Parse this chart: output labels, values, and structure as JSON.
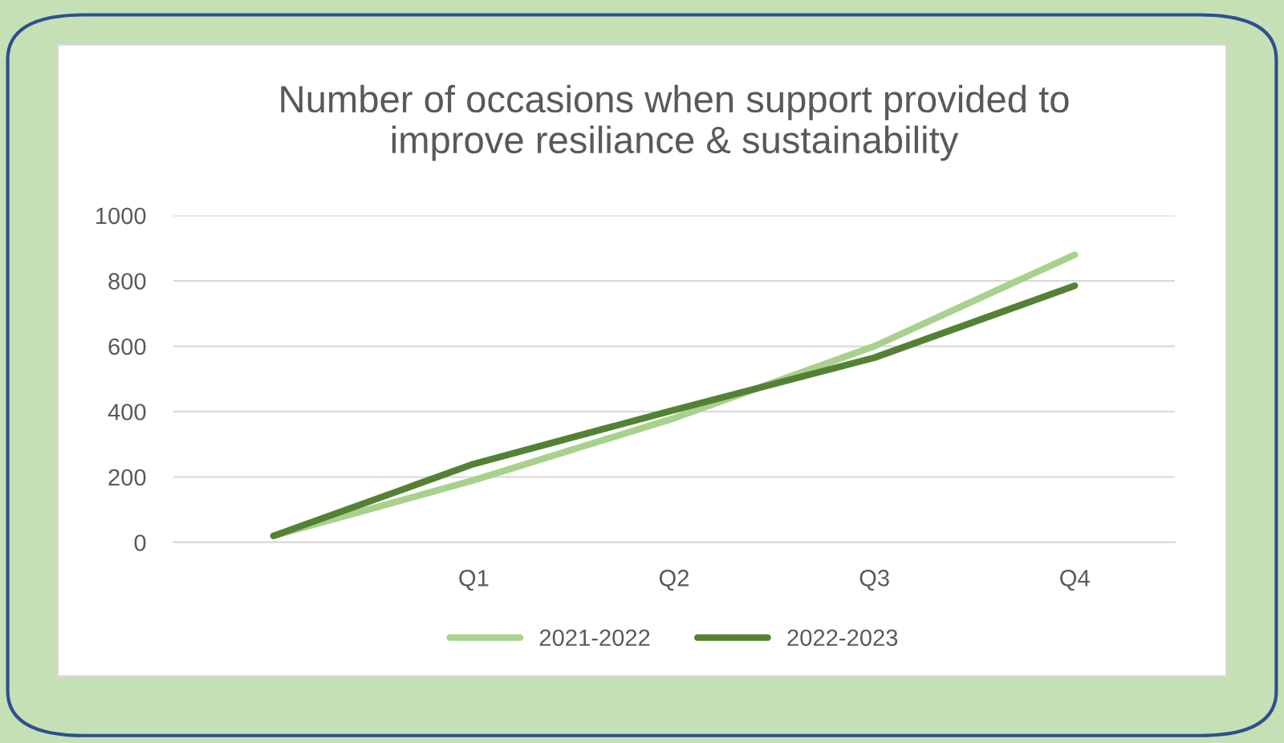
{
  "chart_data": {
    "type": "line",
    "title": "Number of occasions when support provided to\nimprove resiliance & sustainability",
    "categories": [
      null,
      "Q1",
      "Q2",
      "Q3",
      "Q4"
    ],
    "series": [
      {
        "name": "2021-2022",
        "color": "#a9d18e",
        "values": [
          20,
          190,
          380,
          600,
          880
        ]
      },
      {
        "name": "2022-2023",
        "color": "#548235",
        "values": [
          20,
          240,
          405,
          565,
          785
        ]
      }
    ],
    "ylim": [
      0,
      1000
    ],
    "yticks": [
      0,
      200,
      400,
      600,
      800,
      1000
    ],
    "grid": "y",
    "legend": "bottom",
    "marker": "none",
    "line_style": "solid"
  }
}
